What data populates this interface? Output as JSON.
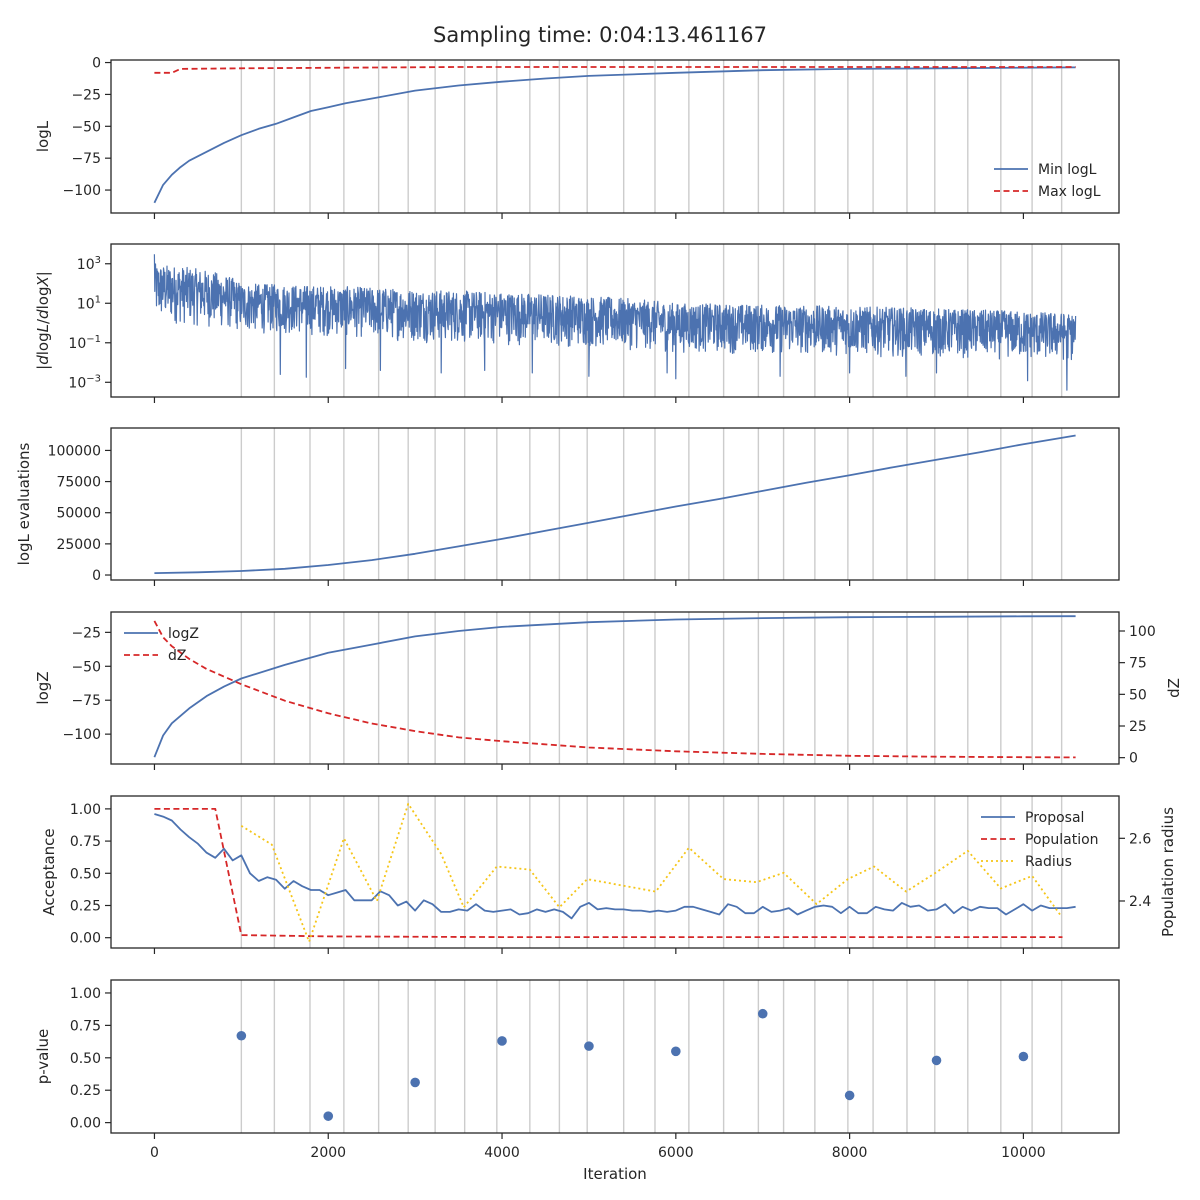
{
  "chart_data": {
    "title": "Sampling time: 0:04:13.461167",
    "xlabel": "Iteration",
    "type": "line",
    "x_range": [
      -500,
      11100
    ],
    "x_ticks": [
      0,
      2000,
      4000,
      6000,
      8000,
      10000
    ],
    "x_ticklabels": [
      "0",
      "2000",
      "4000",
      "6000",
      "8000",
      "10000"
    ],
    "vertical_lines": [
      1000,
      1380,
      1790,
      2180,
      2580,
      2920,
      3230,
      3570,
      3940,
      4320,
      4660,
      4980,
      5400,
      5760,
      6150,
      6550,
      6950,
      7240,
      7600,
      7980,
      8270,
      8660,
      8980,
      9360,
      9740,
      10100,
      10440
    ],
    "panels": [
      {
        "id": "logL",
        "type": "line",
        "ylabel": "logL",
        "ylim": [
          -118,
          2
        ],
        "yticks": [
          0,
          -25,
          -50,
          -75,
          -100
        ],
        "yticklabels": [
          "0",
          "−25",
          "−50",
          "−75",
          "−100"
        ],
        "legend": "lower-right",
        "series": [
          {
            "name": "Min logL",
            "color": "#4c72b0",
            "style": "solid",
            "x": [
              0,
              100,
              200,
              300,
              400,
              600,
              800,
              1000,
              1200,
              1400,
              1600,
              1800,
              2000,
              2200,
              2600,
              3000,
              3500,
              4000,
              4500,
              5000,
              6000,
              7000,
              8000,
              9000,
              10000,
              10600
            ],
            "y": [
              -110,
              -96,
              -88,
              -82,
              -77,
              -70,
              -63,
              -57,
              -52,
              -48,
              -43,
              -38,
              -35,
              -32,
              -27,
              -22,
              -18,
              -15,
              -12.5,
              -10.5,
              -8,
              -6,
              -5,
              -4.5,
              -4,
              -3.8
            ]
          },
          {
            "name": "Max logL",
            "color": "#d62728",
            "style": "dashed",
            "x": [
              0,
              200,
              300,
              1000,
              3500,
              10600
            ],
            "y": [
              -8,
              -8,
              -5,
              -4.5,
              -3.5,
              -3.5
            ]
          }
        ]
      },
      {
        "id": "dlogL",
        "type": "line",
        "ylabel": "|dlogL/dlogX|",
        "yscale": "log",
        "ylim": [
          0.00018,
          10000
        ],
        "yticks": [
          0.001,
          0.1,
          10,
          1000
        ],
        "yticklabels": [
          "10^−3",
          "10^−1",
          "10^1",
          "10^3"
        ],
        "series": [
          {
            "name": "",
            "color": "#4c72b0",
            "style": "solid",
            "noisy": true,
            "x_range": [
              0,
              10600
            ],
            "envelope": {
              "x": [
                0,
                1000,
                3000,
                6000,
                10600
              ],
              "upper": [
                1000,
                100,
                50,
                10,
                3
              ],
              "lower": [
                1,
                0.3,
                0.1,
                0.03,
                0.01
              ]
            },
            "dips": [
              {
                "x": 1450,
                "y": 0.0025
              },
              {
                "x": 1750,
                "y": 0.0018
              },
              {
                "x": 2200,
                "y": 0.005
              },
              {
                "x": 2600,
                "y": 0.004
              },
              {
                "x": 3300,
                "y": 0.003
              },
              {
                "x": 3800,
                "y": 0.004
              },
              {
                "x": 4350,
                "y": 0.003
              },
              {
                "x": 5000,
                "y": 0.002
              },
              {
                "x": 5900,
                "y": 0.003
              },
              {
                "x": 6000,
                "y": 0.0015
              },
              {
                "x": 7200,
                "y": 0.002
              },
              {
                "x": 8000,
                "y": 0.003
              },
              {
                "x": 8650,
                "y": 0.002
              },
              {
                "x": 9000,
                "y": 0.003
              },
              {
                "x": 10050,
                "y": 0.0012
              },
              {
                "x": 10500,
                "y": 0.0004
              }
            ]
          }
        ]
      },
      {
        "id": "evals",
        "type": "line",
        "ylabel": "logL evaluations",
        "ylim": [
          -4000,
          118000
        ],
        "yticks": [
          0,
          25000,
          50000,
          75000,
          100000
        ],
        "yticklabels": [
          "0",
          "25000",
          "50000",
          "75000",
          "100000"
        ],
        "series": [
          {
            "name": "",
            "color": "#4c72b0",
            "style": "solid",
            "x": [
              0,
              500,
              1000,
              1500,
              2000,
              2500,
              3000,
              3500,
              4000,
              4500,
              5000,
              5500,
              6000,
              6500,
              7000,
              7500,
              8000,
              8500,
              9000,
              9500,
              10000,
              10600
            ],
            "y": [
              1500,
              2200,
              3200,
              5000,
              8000,
              12000,
              17000,
              23000,
              29000,
              35500,
              42000,
              48500,
              55000,
              61000,
              67500,
              74000,
              80000,
              86500,
              92500,
              98500,
              105000,
              112000
            ]
          }
        ]
      },
      {
        "id": "logZ",
        "type": "line",
        "ylabel": "logZ",
        "ylabel_right": "dZ",
        "ylim": [
          -122,
          -10
        ],
        "yticks": [
          -25,
          -50,
          -75,
          -100
        ],
        "yticklabels": [
          "−25",
          "−50",
          "−75",
          "−100"
        ],
        "ylim_right": [
          -5,
          115
        ],
        "yticks_right": [
          0,
          25,
          50,
          75,
          100
        ],
        "yticklabels_right": [
          "0",
          "25",
          "50",
          "75",
          "100"
        ],
        "legend": "upper-left",
        "series": [
          {
            "name": "logZ",
            "color": "#4c72b0",
            "style": "solid",
            "axis": "left",
            "x": [
              0,
              100,
              200,
              400,
              600,
              800,
              1000,
              1500,
              2000,
              2500,
              3000,
              3500,
              4000,
              5000,
              6000,
              7000,
              8000,
              9000,
              10000,
              10600
            ],
            "y": [
              -117,
              -101,
              -92,
              -81,
              -72,
              -65,
              -59,
              -49,
              -40,
              -34,
              -28,
              -24,
              -21,
              -17.5,
              -15.5,
              -14.5,
              -13.8,
              -13.5,
              -13.2,
              -13.1
            ]
          },
          {
            "name": "dZ",
            "color": "#d62728",
            "style": "dashed",
            "axis": "right",
            "x": [
              0,
              100,
              200,
              400,
              600,
              800,
              1000,
              1500,
              2000,
              2500,
              3000,
              3500,
              4000,
              5000,
              6000,
              7000,
              8000,
              9000,
              10000,
              10600
            ],
            "y": [
              108,
              95,
              88,
              78,
              70,
              64,
              58,
              45,
              35,
              27,
              21,
              16,
              13,
              8,
              5,
              3,
              1.5,
              0.8,
              0.4,
              0.2
            ]
          }
        ]
      },
      {
        "id": "acceptance",
        "type": "line",
        "ylabel": "Acceptance",
        "ylabel_right": "Population radius",
        "ylim": [
          -0.08,
          1.1
        ],
        "yticks": [
          0,
          0.25,
          0.5,
          0.75,
          1.0
        ],
        "yticklabels": [
          "0.00",
          "0.25",
          "0.50",
          "0.75",
          "1.00"
        ],
        "ylim_right": [
          2.25,
          2.735
        ],
        "yticks_right": [
          2.4,
          2.6
        ],
        "yticklabels_right": [
          "2.4",
          "2.6"
        ],
        "legend": "upper-right",
        "series": [
          {
            "name": "Proposal",
            "color": "#4c72b0",
            "style": "solid",
            "axis": "left",
            "x": [
              0,
              100,
              200,
              300,
              400,
              500,
              600,
              700,
              800,
              900,
              1000,
              1100,
              1200,
              1300,
              1400,
              1500,
              1600,
              1700,
              1800,
              1900,
              2000,
              2100,
              2200,
              2300,
              2400,
              2500,
              2600,
              2700,
              2800,
              2900,
              3000,
              3100,
              3200,
              3300,
              3400,
              3500,
              3600,
              3700,
              3800,
              3900,
              4000,
              4100,
              4200,
              4300,
              4400,
              4500,
              4600,
              4700,
              4800,
              4900,
              5000,
              5100,
              5200,
              5300,
              5400,
              5500,
              5600,
              5700,
              5800,
              5900,
              6000,
              6100,
              6200,
              6300,
              6400,
              6500,
              6600,
              6700,
              6800,
              6900,
              7000,
              7100,
              7200,
              7300,
              7400,
              7500,
              7600,
              7700,
              7800,
              7900,
              8000,
              8100,
              8200,
              8300,
              8400,
              8500,
              8600,
              8700,
              8800,
              8900,
              9000,
              9100,
              9200,
              9300,
              9400,
              9500,
              9600,
              9700,
              9800,
              9900,
              10000,
              10100,
              10200,
              10300,
              10400,
              10500,
              10600
            ],
            "y": [
              0.96,
              0.94,
              0.91,
              0.84,
              0.78,
              0.73,
              0.66,
              0.62,
              0.69,
              0.6,
              0.64,
              0.5,
              0.44,
              0.47,
              0.45,
              0.38,
              0.44,
              0.4,
              0.37,
              0.37,
              0.33,
              0.35,
              0.37,
              0.29,
              0.29,
              0.29,
              0.36,
              0.33,
              0.25,
              0.28,
              0.21,
              0.29,
              0.26,
              0.2,
              0.2,
              0.22,
              0.21,
              0.26,
              0.21,
              0.2,
              0.21,
              0.22,
              0.18,
              0.19,
              0.22,
              0.2,
              0.22,
              0.2,
              0.15,
              0.24,
              0.27,
              0.22,
              0.23,
              0.22,
              0.22,
              0.21,
              0.21,
              0.2,
              0.21,
              0.2,
              0.21,
              0.24,
              0.24,
              0.22,
              0.2,
              0.18,
              0.26,
              0.24,
              0.19,
              0.19,
              0.24,
              0.2,
              0.21,
              0.23,
              0.18,
              0.21,
              0.24,
              0.25,
              0.24,
              0.19,
              0.24,
              0.19,
              0.19,
              0.24,
              0.22,
              0.21,
              0.27,
              0.24,
              0.25,
              0.21,
              0.22,
              0.26,
              0.19,
              0.24,
              0.21,
              0.24,
              0.23,
              0.23,
              0.18,
              0.22,
              0.26,
              0.21,
              0.25,
              0.23,
              0.23,
              0.23,
              0.24
            ]
          },
          {
            "name": "Population",
            "color": "#d62728",
            "style": "dashed",
            "axis": "left",
            "x": [
              0,
              700,
              1000,
              2000,
              4000,
              10450
            ],
            "y": [
              1.0,
              1.0,
              0.02,
              0.01,
              0.005,
              0.005
            ]
          },
          {
            "name": "Radius",
            "color": "#f5c518",
            "style": "dotted",
            "axis": "right",
            "x": [
              1000,
              1350,
              1780,
              2180,
              2560,
              2920,
              3300,
              3560,
              3940,
              4320,
              4660,
              4980,
              5370,
              5770,
              6150,
              6550,
              6930,
              7240,
              7620,
              7980,
              8280,
              8650,
              8990,
              9360,
              9740,
              10100,
              10440
            ],
            "y": [
              2.64,
              2.58,
              2.27,
              2.6,
              2.4,
              2.71,
              2.55,
              2.38,
              2.51,
              2.5,
              2.38,
              2.47,
              2.45,
              2.43,
              2.57,
              2.47,
              2.46,
              2.49,
              2.39,
              2.47,
              2.51,
              2.43,
              2.49,
              2.56,
              2.44,
              2.48,
              2.35
            ]
          }
        ]
      },
      {
        "id": "pvalue",
        "type": "scatter",
        "ylabel": "p-value",
        "ylim": [
          -0.08,
          1.1
        ],
        "yticks": [
          0,
          0.25,
          0.5,
          0.75,
          1.0
        ],
        "yticklabels": [
          "0.00",
          "0.25",
          "0.50",
          "0.75",
          "1.00"
        ],
        "series": [
          {
            "name": "",
            "color": "#4c72b0",
            "style": "points",
            "x": [
              1000,
              2000,
              3000,
              4000,
              5000,
              6000,
              7000,
              8000,
              9000,
              10000
            ],
            "y": [
              0.67,
              0.05,
              0.31,
              0.63,
              0.59,
              0.55,
              0.84,
              0.21,
              0.48,
              0.51
            ]
          }
        ]
      }
    ]
  }
}
